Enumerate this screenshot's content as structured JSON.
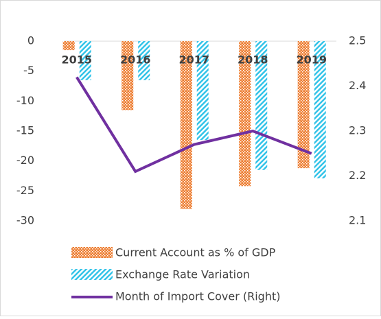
{
  "chart_data": {
    "type": "bar",
    "categories": [
      "2015",
      "2016",
      "2017",
      "2018",
      "2019"
    ],
    "series": [
      {
        "name": "Current Account as % of GDP",
        "color": "#ed7d31",
        "values": [
          -1.5,
          -11.5,
          -28,
          -24.2,
          -21.2
        ]
      },
      {
        "name": "Exchange Rate Variation",
        "color": "#33c3e8",
        "values": [
          -6.5,
          -6.5,
          -16.5,
          -21.5,
          -22.9
        ]
      },
      {
        "name": "Month of Import Cover (Right)",
        "color": "#7030a0",
        "type": "line",
        "axis": "y2",
        "values": [
          2.42,
          2.21,
          2.27,
          2.3,
          2.25
        ]
      }
    ],
    "ylim": [
      -30,
      0
    ],
    "yticks": [
      0,
      -5,
      -10,
      -15,
      -20,
      -25,
      -30
    ],
    "y2lim": [
      2.1,
      2.5
    ],
    "y2ticks": [
      2.5,
      2.4,
      2.3,
      2.2,
      2.1
    ],
    "grid": false,
    "legend": "bottom"
  }
}
